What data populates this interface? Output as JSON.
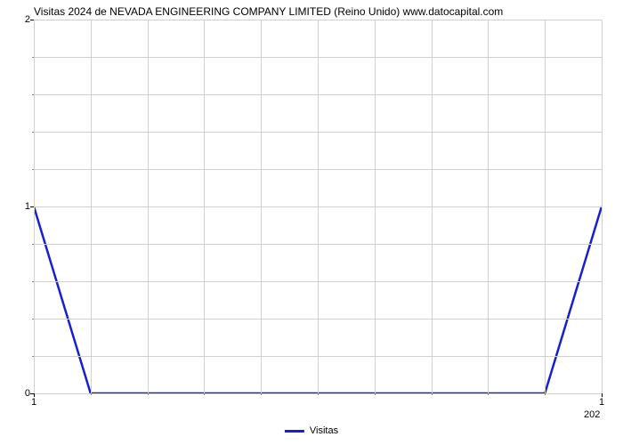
{
  "chart": {
    "type": "line",
    "title": "Visitas 2024 de NEVADA ENGINEERING COMPANY LIMITED (Reino Unido) www.datocapital.com",
    "title_fontsize": 12,
    "title_color": "#000000",
    "background_color": "#ffffff",
    "grid_color": "#d0d0d0",
    "line_color": "#1620d0",
    "line_width": 2.5,
    "y_axis": {
      "min": 0,
      "max": 2,
      "major_ticks": [
        0,
        1,
        2
      ],
      "minor_tick_count": 4,
      "labels": [
        "0",
        "1",
        "2"
      ]
    },
    "x_axis": {
      "min": 0,
      "max": 10,
      "major_ticks": [
        0,
        10
      ],
      "labels": [
        "1",
        "1"
      ],
      "minor_tick_count": 9,
      "secondary_label": "202"
    },
    "data_points": [
      {
        "x": 0,
        "y": 1
      },
      {
        "x": 1,
        "y": 0
      },
      {
        "x": 2,
        "y": 0
      },
      {
        "x": 3,
        "y": 0
      },
      {
        "x": 4,
        "y": 0
      },
      {
        "x": 5,
        "y": 0
      },
      {
        "x": 6,
        "y": 0
      },
      {
        "x": 7,
        "y": 0
      },
      {
        "x": 8,
        "y": 0
      },
      {
        "x": 9,
        "y": 0
      },
      {
        "x": 10,
        "y": 1
      }
    ],
    "legend": {
      "label": "Visitas",
      "color": "#1620d0"
    }
  }
}
